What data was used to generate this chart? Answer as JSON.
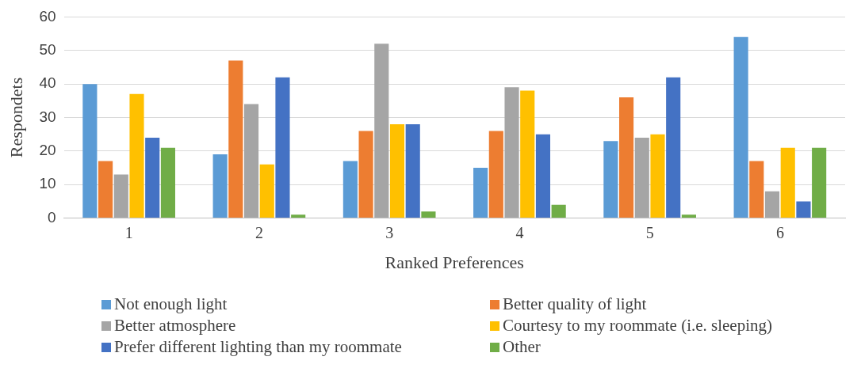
{
  "chart_data": {
    "type": "bar",
    "xlabel": "Ranked Preferences",
    "ylabel": "Respondets",
    "categories": [
      "1",
      "2",
      "3",
      "4",
      "5",
      "6"
    ],
    "series": [
      {
        "name": "Not enough light",
        "color": "#5b9bd5",
        "values": [
          40,
          19,
          17,
          15,
          23,
          54
        ]
      },
      {
        "name": "Better quality of light",
        "color": "#ed7d31",
        "values": [
          17,
          47,
          26,
          26,
          36,
          17
        ]
      },
      {
        "name": "Better atmosphere",
        "color": "#a5a5a5",
        "values": [
          13,
          34,
          52,
          39,
          24,
          8
        ]
      },
      {
        "name": "Courtesy to my roommate (i.e.  sleeping)",
        "color": "#ffc000",
        "values": [
          37,
          16,
          28,
          38,
          25,
          21
        ]
      },
      {
        "name": "Prefer different lighting than my roommate",
        "color": "#4472c4",
        "values": [
          24,
          42,
          28,
          25,
          42,
          5
        ]
      },
      {
        "name": "Other",
        "color": "#70ad47",
        "values": [
          21,
          1,
          2,
          4,
          1,
          21
        ]
      }
    ],
    "ylim": [
      0,
      60
    ],
    "yticks": [
      0,
      10,
      20,
      30,
      40,
      50,
      60
    ],
    "grid": "y",
    "legend": "bottom"
  }
}
